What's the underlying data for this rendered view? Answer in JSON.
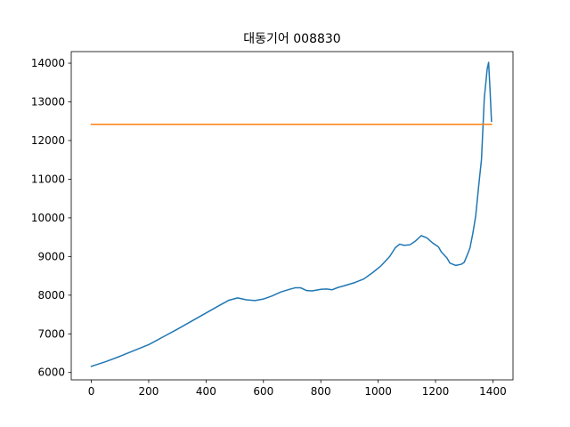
{
  "chart_data": {
    "type": "line",
    "title": "대동기어 008830",
    "xlabel": "",
    "ylabel": "",
    "xlim": [
      -70,
      1470
    ],
    "ylim": [
      5810,
      14300
    ],
    "grid": false,
    "xticks": [
      0,
      200,
      400,
      600,
      800,
      1000,
      1200,
      1400
    ],
    "xtick_labels": [
      "0",
      "200",
      "400",
      "600",
      "800",
      "1000",
      "1200",
      "1400"
    ],
    "yticks": [
      6000,
      7000,
      8000,
      9000,
      10000,
      11000,
      12000,
      13000,
      14000
    ],
    "ytick_labels": [
      "6000",
      "7000",
      "8000",
      "9000",
      "10000",
      "11000",
      "12000",
      "13000",
      "14000"
    ],
    "series": [
      {
        "color": "#1f77b4",
        "x": [
          0,
          50,
          100,
          150,
          200,
          250,
          300,
          350,
          400,
          450,
          480,
          510,
          540,
          570,
          600,
          630,
          660,
          690,
          710,
          730,
          750,
          770,
          800,
          820,
          840,
          860,
          880,
          920,
          950,
          980,
          1010,
          1040,
          1060,
          1075,
          1090,
          1110,
          1130,
          1150,
          1170,
          1190,
          1210,
          1220,
          1240,
          1250,
          1270,
          1290,
          1300,
          1310,
          1320,
          1330,
          1340,
          1350,
          1360,
          1370,
          1380,
          1385,
          1390,
          1395
        ],
        "y": [
          6160,
          6280,
          6420,
          6570,
          6720,
          6920,
          7120,
          7330,
          7540,
          7750,
          7870,
          7930,
          7880,
          7860,
          7900,
          7980,
          8080,
          8150,
          8190,
          8190,
          8120,
          8110,
          8150,
          8160,
          8140,
          8200,
          8240,
          8330,
          8420,
          8580,
          8760,
          9000,
          9230,
          9320,
          9290,
          9300,
          9400,
          9540,
          9480,
          9350,
          9250,
          9120,
          8960,
          8830,
          8770,
          8800,
          8850,
          9030,
          9220,
          9600,
          10050,
          10800,
          11500,
          13100,
          13850,
          14020,
          13300,
          12500
        ]
      },
      {
        "color": "#ff7f0e",
        "x": [
          0,
          1395
        ],
        "y": [
          12420,
          12420
        ]
      }
    ]
  }
}
